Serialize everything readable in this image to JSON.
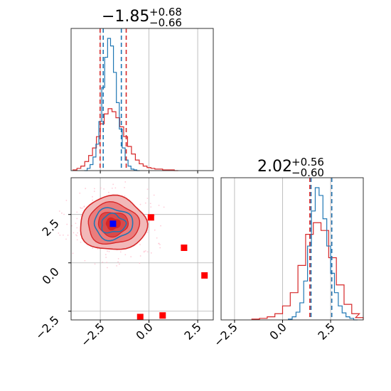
{
  "chart_data": {
    "type": "corner",
    "parameters": [
      {
        "title": {
          "median": "−1.85",
          "plus": "+0.68",
          "minus": "−0.66"
        },
        "median": -1.85,
        "err_plus": 0.68,
        "err_minus": 0.66,
        "xlim": [
          -4.0,
          3.3
        ],
        "quantiles_blue": [
          -2.35,
          -1.42
        ],
        "quantiles_red": [
          -2.51,
          -1.17
        ]
      },
      {
        "title": {
          "median": "2.02",
          "plus": "+0.56",
          "minus": "−0.60"
        },
        "median": 2.02,
        "err_plus": 0.56,
        "err_minus": 0.6,
        "xlim": [
          -3.2,
          4.2
        ],
        "quantiles_blue": [
          1.48,
          2.56
        ],
        "quantiles_red": [
          1.42,
          2.56
        ]
      }
    ],
    "ticks": {
      "p1": [
        -2.5,
        0.0,
        2.5
      ],
      "p1_labels": [
        "−2.5",
        "0.0",
        "2.5"
      ],
      "p2": [
        -2.5,
        0.0,
        2.5
      ],
      "p2_labels": [
        "−2.5",
        "0.0",
        "2.5"
      ]
    },
    "joint": {
      "xlim": [
        -4.0,
        3.3
      ],
      "ylim": [
        -2.95,
        4.4
      ],
      "blue_marker": [
        -1.85,
        2.02
      ],
      "red_markers": [
        [
          0.1,
          2.35
        ],
        [
          1.8,
          0.78
        ],
        [
          2.85,
          -0.65
        ],
        [
          0.7,
          -2.72
        ],
        [
          -0.45,
          -2.8
        ]
      ]
    },
    "hist1_blue": {
      "x": [
        -3.25,
        -3.1,
        -2.95,
        -2.8,
        -2.65,
        -2.5,
        -2.35,
        -2.2,
        -2.05,
        -1.9,
        -1.75,
        -1.6,
        -1.45,
        -1.3,
        -1.15,
        -1.0,
        -0.85,
        -0.7,
        -0.55
      ],
      "y": [
        0,
        3,
        8,
        18,
        35,
        65,
        110,
        150,
        175,
        165,
        130,
        90,
        55,
        30,
        14,
        6,
        2,
        1,
        0
      ]
    },
    "hist1_red": {
      "x": [
        -3.8,
        -3.6,
        -3.4,
        -3.2,
        -3.0,
        -2.8,
        -2.6,
        -2.4,
        -2.2,
        -2.0,
        -1.8,
        -1.6,
        -1.4,
        -1.2,
        -1.0,
        -0.8,
        -0.6,
        -0.4,
        -0.2,
        0.0,
        0.2,
        0.4,
        0.6,
        0.8,
        1.0,
        1.2,
        1.4
      ],
      "y": [
        1,
        3,
        6,
        12,
        20,
        30,
        45,
        62,
        75,
        82,
        78,
        70,
        58,
        45,
        32,
        22,
        14,
        9,
        6,
        4,
        3,
        2,
        2,
        1,
        1,
        1,
        0
      ]
    },
    "hist2_blue": {
      "x": [
        0.4,
        0.6,
        0.8,
        1.0,
        1.2,
        1.4,
        1.6,
        1.8,
        2.0,
        2.2,
        2.4,
        2.6,
        2.8,
        3.0,
        3.2,
        3.4,
        3.6,
        3.8
      ],
      "y": [
        1,
        4,
        10,
        22,
        50,
        95,
        140,
        170,
        160,
        130,
        95,
        60,
        35,
        18,
        9,
        4,
        2,
        0
      ]
    },
    "hist2_red": {
      "x": [
        -1.4,
        -1.0,
        -0.6,
        -0.2,
        0.2,
        0.6,
        1.0,
        1.4,
        1.8,
        2.2,
        2.6,
        3.0,
        3.4,
        3.8,
        4.0
      ],
      "y": [
        1,
        2,
        4,
        8,
        18,
        35,
        70,
        110,
        125,
        115,
        80,
        45,
        20,
        8,
        3
      ]
    },
    "colors": {
      "blue": "#1f77b4",
      "red": "#d62728",
      "fill1": "#f2b8b8",
      "fill2": "#ea7d7d",
      "fill3": "#d94a4a",
      "marker_blue": "#0000ff",
      "marker_red": "#ff0000",
      "scatter": "#ffb6c8"
    }
  }
}
